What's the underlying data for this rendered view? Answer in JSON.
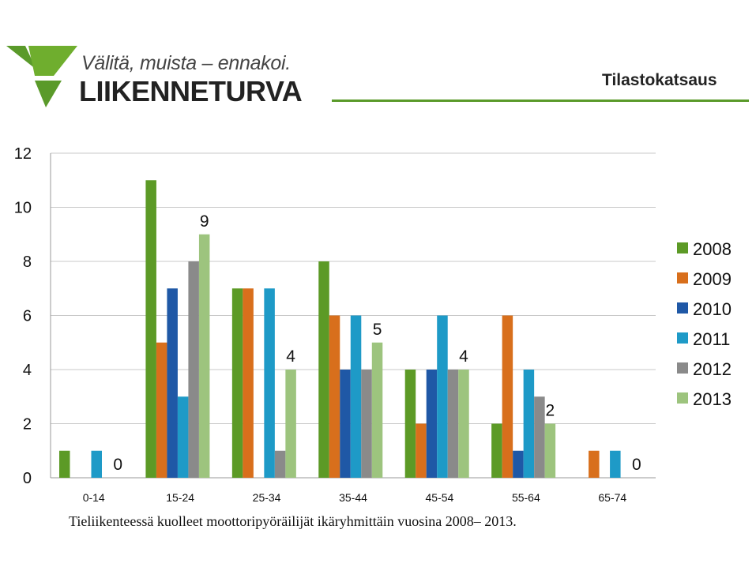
{
  "header": {
    "slogan": "Välitä, muista – ennakoi.",
    "brand": "LIIKENNETURVA",
    "title": "Tilastokatsaus",
    "colors": {
      "logo_green": "#5a9a2a",
      "line_green": "#5a9a2a"
    },
    "logo_icon": "liikenneturva-logo-icon"
  },
  "caption": "Tieliikenteessä kuolleet moottoripyöräilijät ikäryhmittäin vuosina 2008– 2013.",
  "chart_data": {
    "type": "bar",
    "title": "",
    "xlabel": "",
    "ylabel": "",
    "categories": [
      "0-14",
      "15-24",
      "25-34",
      "35-44",
      "45-54",
      "55-64",
      "65-74"
    ],
    "ylim": [
      0,
      12
    ],
    "yticks": [
      0,
      2,
      4,
      6,
      8,
      10,
      12
    ],
    "grid": true,
    "legend_position": "right",
    "series": [
      {
        "name": "2008",
        "color": "#5c9a26",
        "values": [
          1,
          11,
          7,
          8,
          4,
          2,
          0
        ]
      },
      {
        "name": "2009",
        "color": "#d86f1c",
        "values": [
          0,
          5,
          7,
          6,
          2,
          6,
          1
        ]
      },
      {
        "name": "2010",
        "color": "#1f58a6",
        "values": [
          0,
          7,
          0,
          4,
          4,
          1,
          0
        ]
      },
      {
        "name": "2011",
        "color": "#1e9ac7",
        "values": [
          1,
          3,
          7,
          6,
          6,
          4,
          1
        ]
      },
      {
        "name": "2012",
        "color": "#8a8a8a",
        "values": [
          0,
          8,
          1,
          4,
          4,
          3,
          0
        ]
      },
      {
        "name": "2013",
        "color": "#9dc47e",
        "values": [
          0,
          9,
          4,
          5,
          4,
          2,
          0
        ]
      }
    ],
    "data_labels": [
      {
        "series": "2013",
        "category": "0-14",
        "value": "0"
      },
      {
        "series": "2013",
        "category": "15-24",
        "value": "9"
      },
      {
        "series": "2013",
        "category": "25-34",
        "value": "4"
      },
      {
        "series": "2013",
        "category": "35-44",
        "value": "5"
      },
      {
        "series": "2013",
        "category": "45-54",
        "value": "4"
      },
      {
        "series": "2013",
        "category": "55-64",
        "value": "2"
      },
      {
        "series": "2013",
        "category": "65-74",
        "value": "0"
      }
    ]
  }
}
